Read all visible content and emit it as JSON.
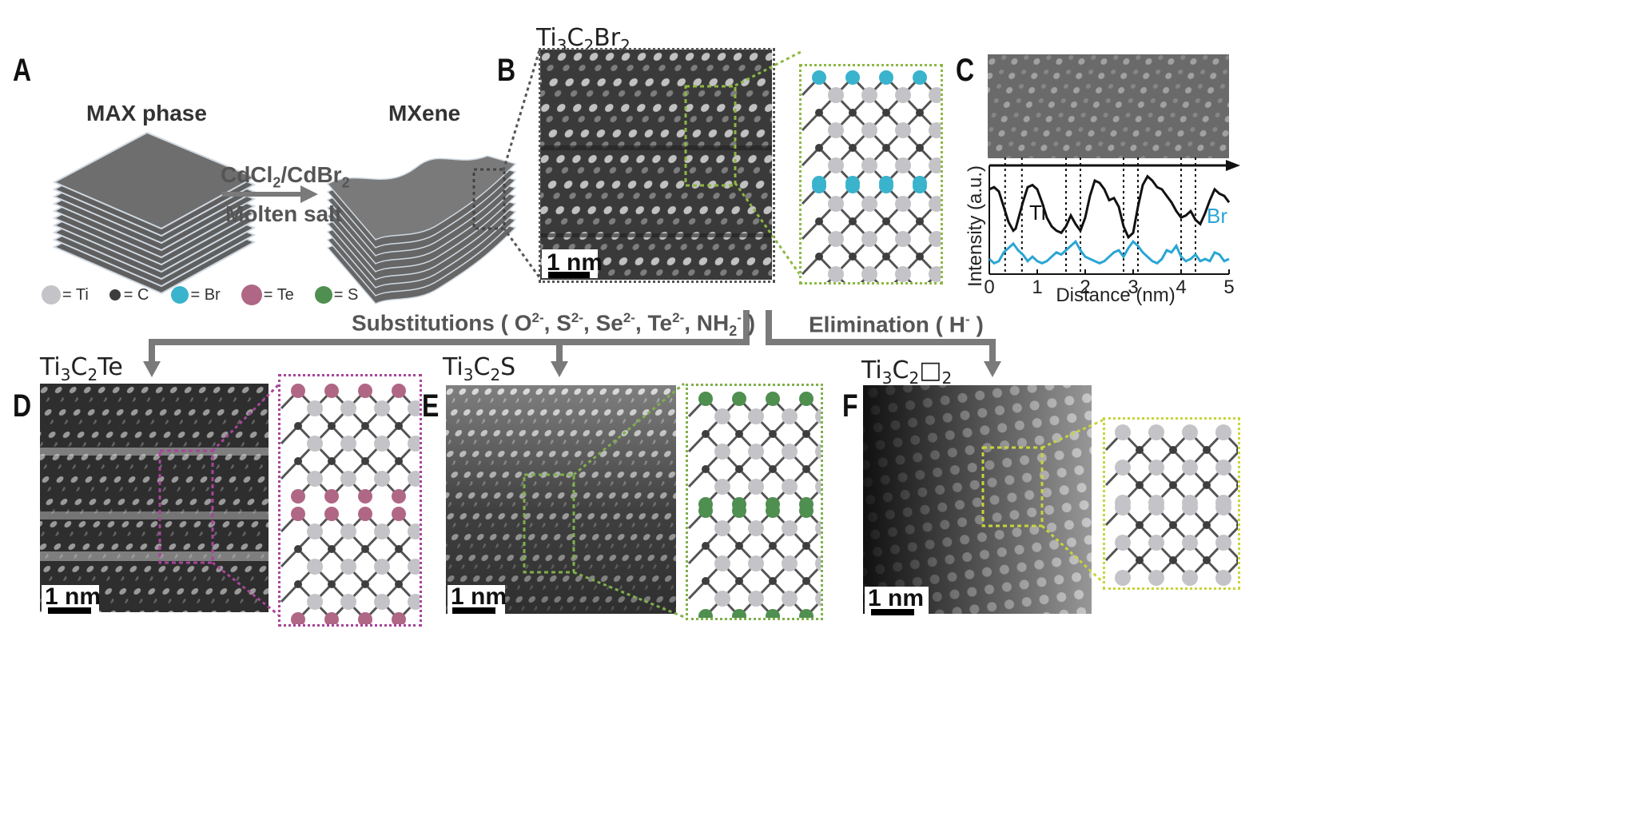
{
  "panels": {
    "A": "A",
    "B": "B",
    "C": "C",
    "D": "D",
    "E": "E",
    "F": "F"
  },
  "panel_a": {
    "max_phase_label": "MAX phase",
    "mxene_label": "MXene",
    "reagent_main": "CdCl",
    "reagent_sub1": "2",
    "reagent_slash": "/CdBr",
    "reagent_sub2": "2",
    "condition": "Molten salt"
  },
  "legend": {
    "items": [
      {
        "symbol": "= Ti",
        "color": "#c4c4c8"
      },
      {
        "symbol": "= C",
        "color": "#3d3d3d"
      },
      {
        "symbol": "= Br",
        "color": "#3ab3cc"
      },
      {
        "symbol": "= Te",
        "color": "#b06785"
      },
      {
        "symbol": "= S",
        "color": "#4f8f4f"
      }
    ]
  },
  "captions": {
    "b": {
      "t1": "Ti",
      "s1": "3",
      "t2": "C",
      "s2": "2",
      "t3": "Br",
      "s3": "2"
    },
    "d": {
      "t1": "Ti",
      "s1": "3",
      "t2": "C",
      "s2": "2",
      "t3": "Te"
    },
    "e": {
      "t1": "Ti",
      "s1": "3",
      "t2": "C",
      "s2": "2",
      "t3": "S"
    },
    "f": {
      "t1": "Ti",
      "s1": "3",
      "t2": "C",
      "s2": "2",
      "t3": "□",
      "s3": "2"
    }
  },
  "arrows": {
    "substitutions_prefix": "Substitutions ( O",
    "sub_o": "2-",
    "sep1": ", S",
    "sub_s": "2-",
    "sep2": ", Se",
    "sub_se": "2-",
    "sep3": ", Te",
    "sub_te": "2-",
    "sep4": ", NH",
    "sub_nh": "2",
    "sup_nh": "-",
    "substitutions_suffix": " )",
    "elimination_prefix": "Elimination ( H",
    "elimination_sup": "-",
    "elimination_suffix": " )"
  },
  "scale_bars": {
    "b": "1 nm",
    "d": "1 nm",
    "e": "1 nm",
    "f": "1 nm"
  },
  "colors": {
    "ti": "#c4c4c8",
    "c": "#3d3d3d",
    "br": "#3ab3cc",
    "te": "#b06785",
    "s": "#4f8f4f",
    "b_box": "#8db843",
    "d_box": "#a8449b",
    "e_box": "#7fb04a",
    "f_box": "#c8d43a",
    "profile_ti": "#111111",
    "profile_br": "#2aa5d4"
  },
  "chart_data": {
    "type": "line",
    "xlabel": "Distance (nm)",
    "ylabel": "Intensity (a.u.)",
    "xlim": [
      0,
      5
    ],
    "xticks": [
      "0",
      "1",
      "2",
      "3",
      "4",
      "5"
    ],
    "series": [
      {
        "name": "Ti",
        "x": [
          0,
          0.1,
          0.2,
          0.3,
          0.4,
          0.5,
          0.55,
          0.6,
          0.7,
          0.8,
          0.9,
          1.0,
          1.1,
          1.2,
          1.3,
          1.4,
          1.5,
          1.6,
          1.7,
          1.8,
          1.9,
          2.0,
          2.1,
          2.2,
          2.3,
          2.4,
          2.5,
          2.6,
          2.7,
          2.8,
          2.9,
          3.0,
          3.1,
          3.2,
          3.3,
          3.4,
          3.5,
          3.6,
          3.7,
          3.8,
          3.9,
          4.0,
          4.1,
          4.2,
          4.3,
          4.4,
          4.5,
          4.6,
          4.7,
          4.8,
          4.9,
          5.0
        ],
        "values": [
          0.78,
          0.8,
          0.76,
          0.62,
          0.48,
          0.4,
          0.42,
          0.5,
          0.66,
          0.8,
          0.82,
          0.78,
          0.66,
          0.52,
          0.44,
          0.4,
          0.38,
          0.44,
          0.54,
          0.46,
          0.4,
          0.52,
          0.72,
          0.86,
          0.84,
          0.78,
          0.68,
          0.7,
          0.62,
          0.44,
          0.34,
          0.38,
          0.62,
          0.82,
          0.9,
          0.86,
          0.8,
          0.78,
          0.72,
          0.66,
          0.58,
          0.52,
          0.54,
          0.58,
          0.5,
          0.46,
          0.56,
          0.68,
          0.78,
          0.74,
          0.72,
          0.66
        ]
      },
      {
        "name": "Br",
        "x": [
          0,
          0.1,
          0.2,
          0.3,
          0.4,
          0.5,
          0.6,
          0.7,
          0.8,
          0.9,
          1.0,
          1.1,
          1.2,
          1.3,
          1.4,
          1.5,
          1.6,
          1.7,
          1.8,
          1.9,
          2.0,
          2.1,
          2.2,
          2.3,
          2.4,
          2.5,
          2.6,
          2.7,
          2.8,
          2.9,
          3.0,
          3.1,
          3.2,
          3.3,
          3.4,
          3.5,
          3.6,
          3.7,
          3.8,
          3.9,
          4.0,
          4.1,
          4.2,
          4.3,
          4.4,
          4.5,
          4.6,
          4.7,
          4.8,
          4.9,
          5.0
        ],
        "values": [
          0.14,
          0.1,
          0.12,
          0.2,
          0.24,
          0.28,
          0.22,
          0.18,
          0.12,
          0.16,
          0.12,
          0.1,
          0.12,
          0.16,
          0.2,
          0.18,
          0.22,
          0.26,
          0.3,
          0.22,
          0.16,
          0.14,
          0.12,
          0.1,
          0.12,
          0.16,
          0.2,
          0.22,
          0.16,
          0.24,
          0.3,
          0.26,
          0.2,
          0.16,
          0.12,
          0.1,
          0.14,
          0.22,
          0.2,
          0.26,
          0.16,
          0.12,
          0.14,
          0.18,
          0.12,
          0.14,
          0.12,
          0.2,
          0.18,
          0.12,
          0.14
        ]
      }
    ],
    "marker_lines_x": [
      0.33,
      0.68,
      1.6,
      1.9,
      2.8,
      3.1,
      4.0,
      4.3
    ]
  }
}
